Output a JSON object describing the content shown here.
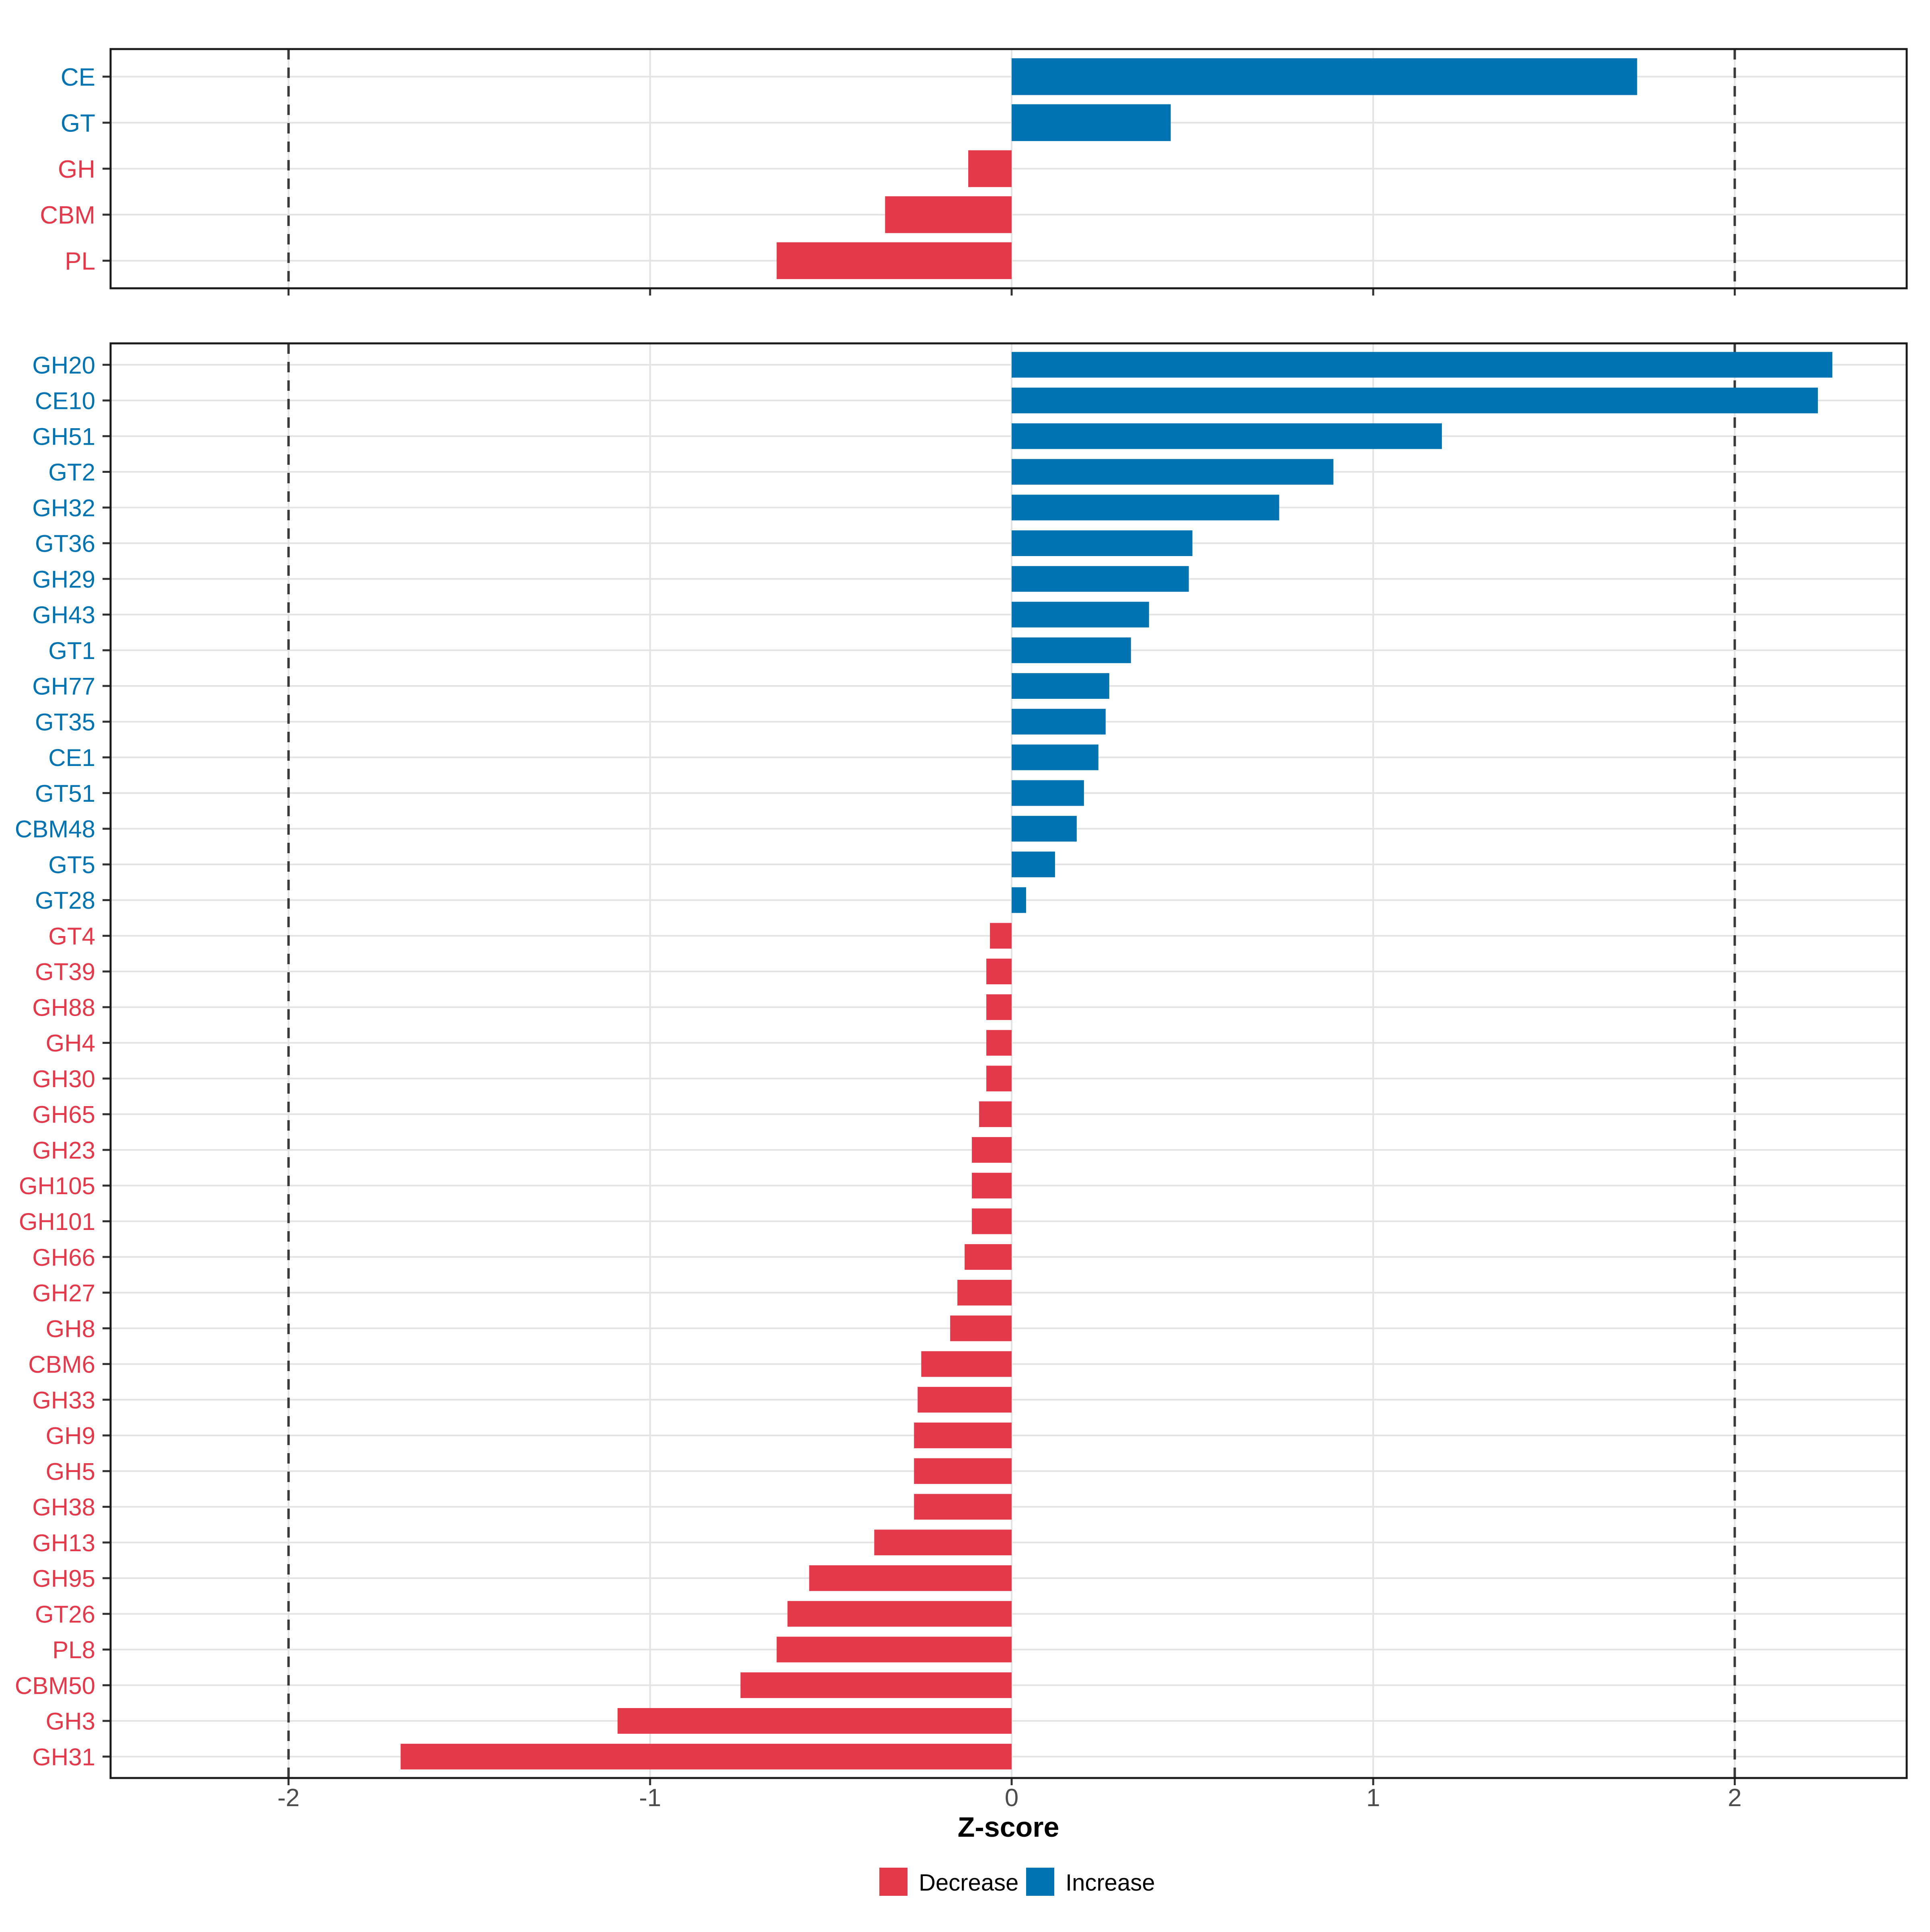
{
  "figure": {
    "background": "#FFFFFF",
    "description": "Two-panel horizontal bar chart of Z-scores for CAZyme classes (top) and families (bottom)"
  },
  "axis": {
    "label": "Z-score",
    "tick_values": [
      -2,
      -1,
      0,
      1,
      2
    ],
    "tick_labels": [
      "-2",
      "-1",
      "0",
      "1",
      "2"
    ],
    "gridline_values": [
      -2,
      -1,
      0,
      1,
      2
    ],
    "dashed_line_values": [
      -2,
      2
    ],
    "xlim": [
      -2.49,
      2.48
    ]
  },
  "legend": {
    "items": [
      {
        "label": "Decrease",
        "color": "#E4394A"
      },
      {
        "label": "Increase",
        "color": "#0073B2"
      }
    ]
  },
  "colors": {
    "decrease": "#E4394A",
    "increase": "#0073B2",
    "grid": "#E3E3E3",
    "axis_text": "#4D4D4D",
    "panel_border": "#1A1A1A",
    "dashed_line": "#3A3A3A",
    "tick_mark": "#333333",
    "axis_title": "#000000",
    "legend_text": "#000000"
  },
  "chart_data": [
    {
      "type": "bar",
      "panel": "top",
      "orientation": "horizontal",
      "title": "",
      "xlabel": "Z-score",
      "ylabel": "",
      "xlim": [
        -2.49,
        2.48
      ],
      "grid": true,
      "categories": [
        "CE",
        "GT",
        "GH",
        "CBM",
        "PL"
      ],
      "values": [
        1.73,
        0.44,
        -0.12,
        -0.35,
        -0.65
      ],
      "directions": [
        "Increase",
        "Increase",
        "Decrease",
        "Decrease",
        "Decrease"
      ]
    },
    {
      "type": "bar",
      "panel": "bottom",
      "orientation": "horizontal",
      "title": "",
      "xlabel": "Z-score",
      "ylabel": "",
      "xlim": [
        -2.49,
        2.48
      ],
      "grid": true,
      "categories": [
        "GH20",
        "CE10",
        "GH51",
        "GT2",
        "GH32",
        "GT36",
        "GH29",
        "GH43",
        "GT1",
        "GH77",
        "GT35",
        "CE1",
        "GT51",
        "CBM48",
        "GT5",
        "GT28",
        "GT4",
        "GT39",
        "GH88",
        "GH4",
        "GH30",
        "GH65",
        "GH23",
        "GH105",
        "GH101",
        "GH66",
        "GH27",
        "GH8",
        "CBM6",
        "GH33",
        "GH9",
        "GH5",
        "GH38",
        "GH13",
        "GH95",
        "GT26",
        "PL8",
        "CBM50",
        "GH3",
        "GH31"
      ],
      "values": [
        2.27,
        2.23,
        1.19,
        0.89,
        0.74,
        0.5,
        0.49,
        0.38,
        0.33,
        0.27,
        0.26,
        0.24,
        0.2,
        0.18,
        0.12,
        0.04,
        -0.06,
        -0.07,
        -0.07,
        -0.07,
        -0.07,
        -0.09,
        -0.11,
        -0.11,
        -0.11,
        -0.13,
        -0.15,
        -0.17,
        -0.25,
        -0.26,
        -0.27,
        -0.27,
        -0.27,
        -0.38,
        -0.56,
        -0.62,
        -0.65,
        -0.75,
        -1.09,
        -1.69
      ],
      "directions": [
        "Increase",
        "Increase",
        "Increase",
        "Increase",
        "Increase",
        "Increase",
        "Increase",
        "Increase",
        "Increase",
        "Increase",
        "Increase",
        "Increase",
        "Increase",
        "Increase",
        "Increase",
        "Increase",
        "Decrease",
        "Decrease",
        "Decrease",
        "Decrease",
        "Decrease",
        "Decrease",
        "Decrease",
        "Decrease",
        "Decrease",
        "Decrease",
        "Decrease",
        "Decrease",
        "Decrease",
        "Decrease",
        "Decrease",
        "Decrease",
        "Decrease",
        "Decrease",
        "Decrease",
        "Decrease",
        "Decrease",
        "Decrease",
        "Decrease",
        "Decrease"
      ]
    }
  ]
}
